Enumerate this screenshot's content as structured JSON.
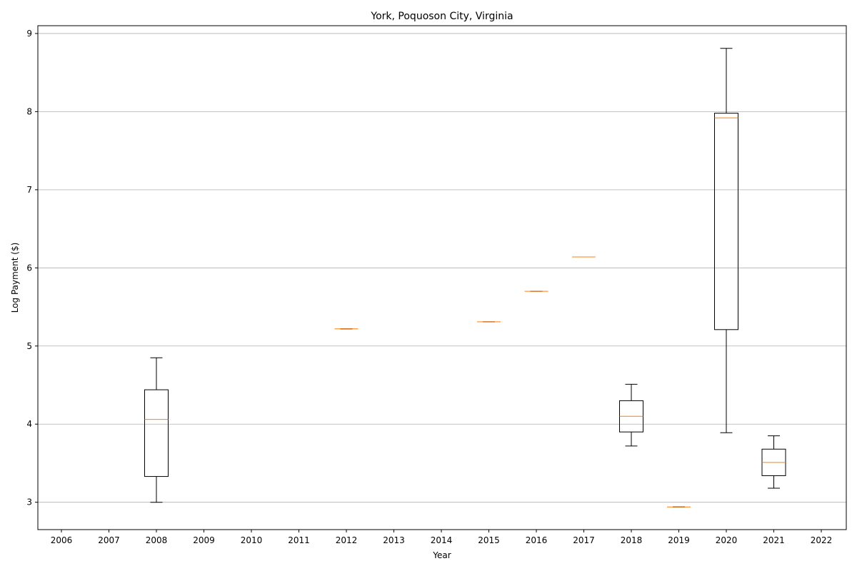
{
  "chart_data": {
    "type": "box",
    "title": "York, Poquoson City, Virginia",
    "xlabel": "Year",
    "ylabel": "Log Payment ($)",
    "categories": [
      "2006",
      "2007",
      "2008",
      "2009",
      "2010",
      "2011",
      "2012",
      "2013",
      "2014",
      "2015",
      "2016",
      "2017",
      "2018",
      "2019",
      "2020",
      "2021",
      "2022"
    ],
    "ylim": [
      2.65,
      9.1
    ],
    "yticks": [
      3,
      4,
      5,
      6,
      7,
      8,
      9
    ],
    "grid": "y",
    "boxes": [
      {
        "category": "2008",
        "whisker_low": 3.0,
        "q1": 3.33,
        "median": 4.06,
        "q3": 4.44,
        "whisker_high": 4.85
      },
      {
        "category": "2012",
        "whisker_low": 5.22,
        "q1": 5.22,
        "median": 5.22,
        "q3": 5.22,
        "whisker_high": 5.22
      },
      {
        "category": "2015",
        "whisker_low": 5.31,
        "q1": 5.31,
        "median": 5.31,
        "q3": 5.31,
        "whisker_high": 5.31
      },
      {
        "category": "2016",
        "whisker_low": 5.7,
        "q1": 5.7,
        "median": 5.7,
        "q3": 5.7,
        "whisker_high": 5.7
      },
      {
        "category": "2017",
        "whisker_low": 6.14,
        "q1": 6.14,
        "median": 6.14,
        "q3": 6.14,
        "whisker_high": 6.14
      },
      {
        "category": "2018",
        "whisker_low": 3.72,
        "q1": 3.9,
        "median": 4.1,
        "q3": 4.3,
        "whisker_high": 4.51
      },
      {
        "category": "2019",
        "whisker_low": 2.94,
        "q1": 2.94,
        "median": 2.94,
        "q3": 2.94,
        "whisker_high": 2.94
      },
      {
        "category": "2020",
        "whisker_low": 3.89,
        "q1": 5.21,
        "median": 7.92,
        "q3": 7.98,
        "whisker_high": 8.81
      },
      {
        "category": "2021",
        "whisker_low": 3.18,
        "q1": 3.34,
        "median": 3.51,
        "q3": 3.68,
        "whisker_high": 3.85
      }
    ],
    "colors": {
      "box": "#000000",
      "median": "#ff7f0e",
      "grid": "#b0b0b0"
    }
  }
}
